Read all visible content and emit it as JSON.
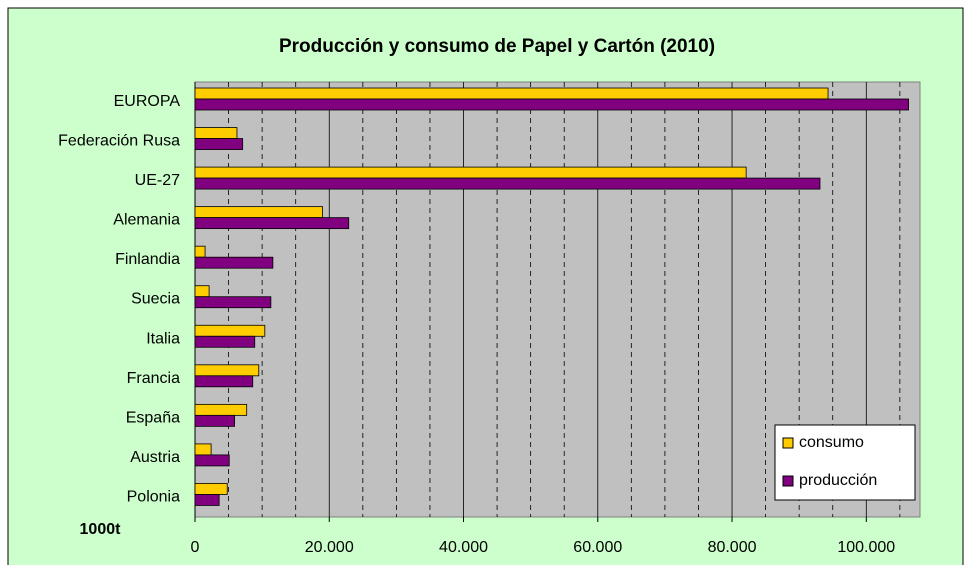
{
  "chart_data": {
    "type": "hbar",
    "title": "Producción y consumo de Papel y Cartón (2010)",
    "xlabel": "1000t",
    "categories": [
      "EUROPA",
      "Federación Rusa",
      "UE-27",
      "Alemania",
      "Finlandia",
      "Suecia",
      "Italia",
      "Francia",
      "España",
      "Austria",
      "Polonia"
    ],
    "series": [
      {
        "name": "consumo",
        "color": "#ffcc00",
        "values": [
          94300,
          6250,
          82100,
          19000,
          1500,
          2100,
          10400,
          9500,
          7700,
          2400,
          4800
        ]
      },
      {
        "name": "producción",
        "color": "#800080",
        "values": [
          106300,
          7100,
          93100,
          22900,
          11600,
          11300,
          8900,
          8600,
          5900,
          5100,
          3600
        ]
      }
    ],
    "xlim": [
      0,
      108000
    ],
    "xticks": [
      0,
      {
        "value": 20000,
        "label": "20.000"
      },
      {
        "value": 40000,
        "label": "40.000"
      },
      {
        "value": 60000,
        "label": "60.000"
      },
      {
        "value": 80000,
        "label": "80.000"
      },
      {
        "value": 100000,
        "label": "100.000"
      }
    ],
    "minor_xticks": [
      5000,
      10000,
      15000,
      25000,
      30000,
      35000,
      45000,
      50000,
      55000,
      65000,
      70000,
      75000,
      85000,
      90000,
      95000,
      105000
    ],
    "grid": true,
    "legend": "bottom-right"
  }
}
